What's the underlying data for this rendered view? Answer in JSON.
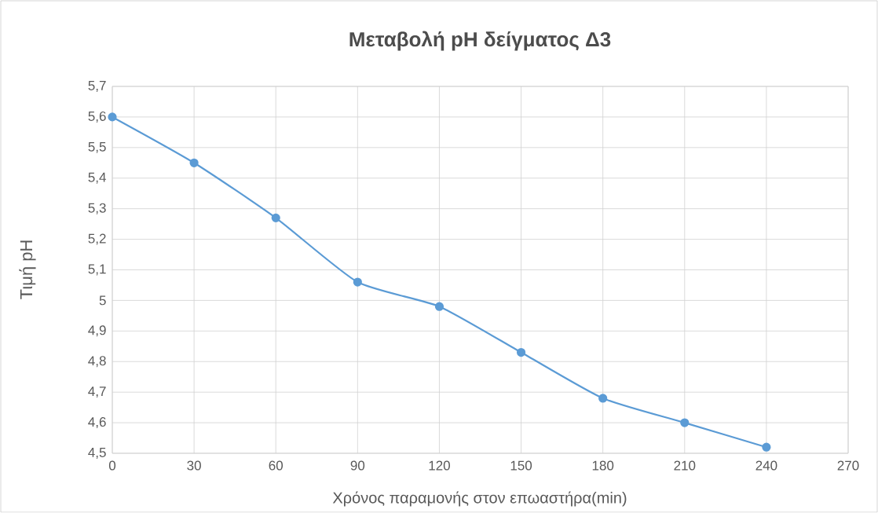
{
  "chart_data": {
    "type": "line",
    "title": "Μεταβολή pH δείγματος Δ3",
    "xlabel": "Χρόνος  παραμονής στον επωαστήρα(min)",
    "ylabel": "Τιμή pH",
    "x": [
      0,
      30,
      60,
      90,
      120,
      150,
      180,
      210,
      240
    ],
    "series": [
      {
        "color": "#5b9bd5",
        "values": [
          5.6,
          5.45,
          5.27,
          5.06,
          4.98,
          4.83,
          4.68,
          4.6,
          4.52
        ]
      }
    ],
    "xlim": [
      0,
      270
    ],
    "xticks": [
      0,
      30,
      60,
      90,
      120,
      150,
      180,
      210,
      240,
      270
    ],
    "ylim": [
      4.5,
      5.7
    ],
    "yticks": [
      {
        "value": 4.5,
        "label": "4,5"
      },
      {
        "value": 4.6,
        "label": "4,6"
      },
      {
        "value": 4.7,
        "label": "4,7"
      },
      {
        "value": 4.8,
        "label": "4,8"
      },
      {
        "value": 4.9,
        "label": "4,9"
      },
      {
        "value": 5,
        "label": "5"
      },
      {
        "value": 5.1,
        "label": "5,1"
      },
      {
        "value": 5.2,
        "label": "5,2"
      },
      {
        "value": 5.3,
        "label": "5,3"
      },
      {
        "value": 5.4,
        "label": "5,4"
      },
      {
        "value": 5.5,
        "label": "5,5"
      },
      {
        "value": 5.6,
        "label": "5,6"
      },
      {
        "value": 5.7,
        "label": "5,7"
      }
    ],
    "grid": true,
    "marker": "circle",
    "line_style": "solid"
  }
}
